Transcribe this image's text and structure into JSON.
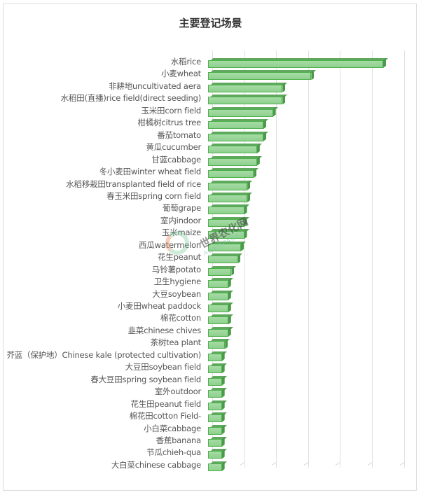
{
  "title": "主要登记场景",
  "watermark": {
    "cn": "世界农化网",
    "en": "AGROPAGES"
  },
  "colors": {
    "bar_fill": "#96d495",
    "bar_border": "#4fb24e",
    "bar_side": "#4a9a4a",
    "grid": "#e0e0e0",
    "label": "#555555"
  },
  "chart_data": {
    "type": "bar",
    "orientation": "horizontal",
    "title": "主要登记场景",
    "xlabel": "",
    "ylabel": "",
    "grid": true,
    "x_tick_labels_visible": false,
    "note": "Values are relative, measured in gridline units (no axis tick labels shown); 3D bar style.",
    "xlim": [
      0,
      6
    ],
    "categories": [
      "水稻rice",
      "小麦wheat",
      "非耕地uncultivated aera",
      "水稻田(直播)rice field(direct seeding)",
      "玉米田corn field",
      "柑橘树citrus tree",
      "番茄tomato",
      "黄瓜cucumber",
      "甘蓝cabbage",
      "冬小麦田winter wheat field",
      "水稻移栽田transplanted field of rice",
      "春玉米田spring corn field",
      "葡萄grape",
      "室内indoor",
      "玉米maize",
      "西瓜watermelon",
      "花生peanut",
      "马铃薯potato",
      "卫生hygiene",
      "大豆soybean",
      "小麦田wheat paddock",
      "棉花cotton",
      "韭菜chinese chives",
      "茶树tea plant",
      "芥蓝（保护地）Chinese kale (protected cultivation)",
      "大豆田soybean field",
      "春大豆田spring soybean field",
      "室外outdoor",
      "花生田peanut field",
      "棉花田cotton Field-",
      "小白菜cabbage",
      "香蕉banana",
      "节瓜chieh-qua",
      "大白菜chinese cabbage"
    ],
    "values": [
      5.35,
      3.1,
      2.2,
      2.2,
      1.9,
      1.6,
      1.6,
      1.4,
      1.4,
      1.3,
      1.1,
      1.1,
      1.0,
      1.0,
      1.0,
      0.9,
      0.8,
      0.6,
      0.5,
      0.5,
      0.5,
      0.5,
      0.5,
      0.4,
      0.3,
      0.3,
      0.3,
      0.3,
      0.3,
      0.3,
      0.3,
      0.3,
      0.3,
      0.3
    ]
  }
}
